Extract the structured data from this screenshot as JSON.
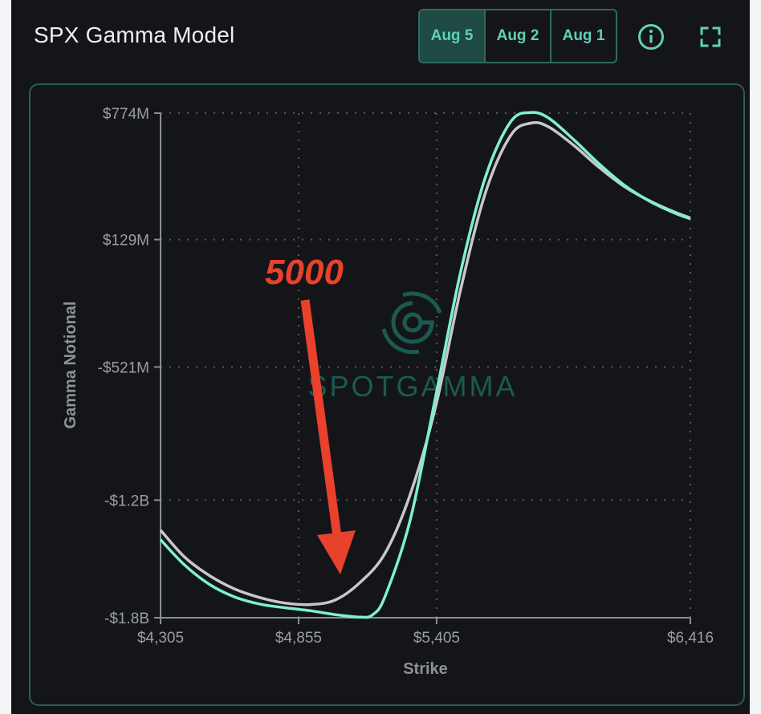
{
  "header": {
    "title": "SPX Gamma Model",
    "tabs": [
      {
        "label": "Aug 5"
      },
      {
        "label": "Aug 2"
      },
      {
        "label": "Aug 1"
      }
    ],
    "info_icon": "info-icon",
    "fullscreen_icon": "fullscreen-icon"
  },
  "colors": {
    "background": "#141519",
    "accent": "#5fd0b6",
    "series_current": "#7ff0cf",
    "series_previous": "#c8c8c8",
    "annotation": "#e8412c",
    "grid": "#55595f"
  },
  "watermark": "SPOTGAMMA",
  "annotation": {
    "label": "5000"
  },
  "chart_data": {
    "type": "line",
    "xlabel": "Strike",
    "ylabel": "Gamma Notional",
    "xlim": [
      4305,
      6416
    ],
    "ylim": [
      -1800,
      774
    ],
    "x_ticks": [
      {
        "value": 4305,
        "label": "$4,305"
      },
      {
        "value": 4855,
        "label": "$4,855"
      },
      {
        "value": 5405,
        "label": "$5,405"
      },
      {
        "value": 6416,
        "label": "$6,416"
      }
    ],
    "y_ticks": [
      {
        "value": 774,
        "label": "$774M"
      },
      {
        "value": 129,
        "label": "$129M"
      },
      {
        "value": -521,
        "label": "-$521M"
      },
      {
        "value": -1200,
        "label": "-$1.2B"
      },
      {
        "value": -1800,
        "label": "-$1.8B"
      }
    ],
    "grid": true,
    "series": [
      {
        "color": "#c8c8c8",
        "points": [
          [
            4305,
            -1353
          ],
          [
            4400,
            -1490
          ],
          [
            4500,
            -1585
          ],
          [
            4600,
            -1653
          ],
          [
            4700,
            -1697
          ],
          [
            4800,
            -1725
          ],
          [
            4900,
            -1733
          ],
          [
            5000,
            -1710
          ],
          [
            5100,
            -1620
          ],
          [
            5200,
            -1470
          ],
          [
            5300,
            -1170
          ],
          [
            5400,
            -730
          ],
          [
            5500,
            -130
          ],
          [
            5600,
            370
          ],
          [
            5700,
            660
          ],
          [
            5780,
            723
          ],
          [
            5850,
            705
          ],
          [
            5950,
            611
          ],
          [
            6050,
            500
          ],
          [
            6150,
            402
          ],
          [
            6250,
            329
          ],
          [
            6350,
            271
          ],
          [
            6416,
            239
          ]
        ]
      },
      {
        "color": "#7ff0cf",
        "points": [
          [
            4305,
            -1402
          ],
          [
            4400,
            -1530
          ],
          [
            4500,
            -1630
          ],
          [
            4600,
            -1694
          ],
          [
            4700,
            -1730
          ],
          [
            4800,
            -1749
          ],
          [
            4900,
            -1764
          ],
          [
            5000,
            -1784
          ],
          [
            5100,
            -1797
          ],
          [
            5150,
            -1785
          ],
          [
            5200,
            -1690
          ],
          [
            5300,
            -1300
          ],
          [
            5400,
            -680
          ],
          [
            5500,
            -40
          ],
          [
            5600,
            450
          ],
          [
            5700,
            730
          ],
          [
            5780,
            777
          ],
          [
            5850,
            750
          ],
          [
            5950,
            640
          ],
          [
            6050,
            518
          ],
          [
            6150,
            409
          ],
          [
            6250,
            327
          ],
          [
            6350,
            266
          ],
          [
            6416,
            235
          ]
        ]
      }
    ]
  }
}
